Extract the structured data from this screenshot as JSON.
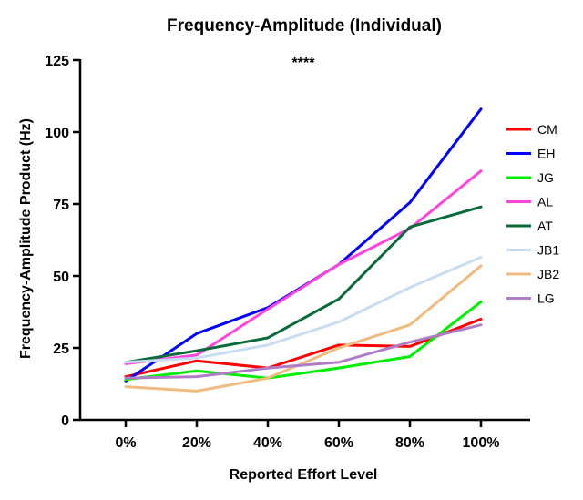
{
  "chart_data": {
    "type": "line",
    "title": "Frequency-Amplitude (Individual)",
    "xlabel": "Reported Effort Level",
    "ylabel": "Frequency-Amplitude Product (Hz)",
    "categories": [
      "0%",
      "20%",
      "40%",
      "60%",
      "80%",
      "100%"
    ],
    "ylim": [
      0,
      125
    ],
    "yticks": [
      0,
      25,
      50,
      75,
      100,
      125
    ],
    "annotation": "****",
    "grid": false,
    "legend_position": "right",
    "series": [
      {
        "name": "CM",
        "color": "#ff0000",
        "values": [
          15,
          20.5,
          18,
          26,
          25.5,
          35
        ]
      },
      {
        "name": "EH",
        "color": "#0000ff",
        "values": [
          13.5,
          30,
          39,
          54,
          75.5,
          108
        ]
      },
      {
        "name": "JG",
        "color": "#00ee00",
        "values": [
          14,
          17,
          14.5,
          18,
          22,
          41
        ]
      },
      {
        "name": "AL",
        "color": "#ff44dd",
        "values": [
          19.5,
          22.5,
          38.5,
          54,
          66.5,
          86.5
        ]
      },
      {
        "name": "AT",
        "color": "#0a6b3a",
        "values": [
          20,
          24,
          28.5,
          42,
          67,
          74
        ]
      },
      {
        "name": "JB1",
        "color": "#c9ddf2",
        "values": [
          20,
          21.5,
          26,
          34,
          46,
          56.5
        ]
      },
      {
        "name": "JB2",
        "color": "#f0bb7e",
        "values": [
          11.5,
          10,
          14.5,
          25,
          33,
          53.5
        ]
      },
      {
        "name": "LG",
        "color": "#b07cc6",
        "values": [
          14.5,
          15,
          18,
          20,
          27,
          33
        ]
      }
    ]
  }
}
